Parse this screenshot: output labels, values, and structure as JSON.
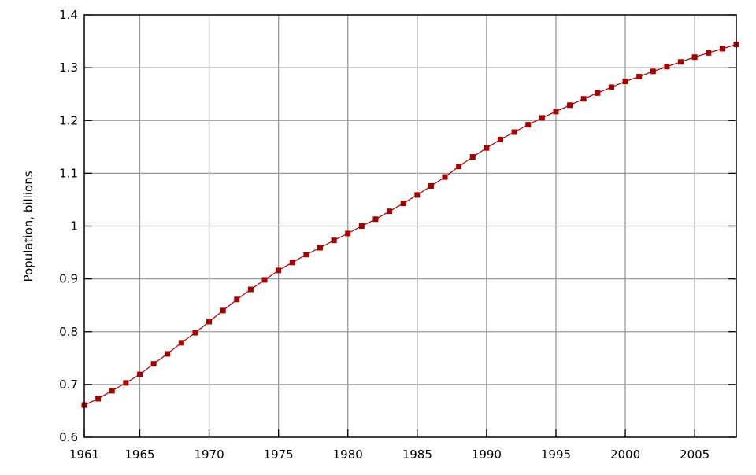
{
  "chart_data": {
    "type": "line",
    "title": "",
    "xlabel": "",
    "ylabel": "Population, billions",
    "xlim": [
      1961,
      2008
    ],
    "ylim": [
      0.6,
      1.4
    ],
    "grid": true,
    "x_ticks": [
      1961,
      1965,
      1970,
      1975,
      1980,
      1985,
      1990,
      1995,
      2000,
      2005
    ],
    "y_ticks": [
      "0.6",
      "0.7",
      "0.8",
      "0.9",
      "1",
      "1.1",
      "1.2",
      "1.3",
      "1.4"
    ],
    "series_color": "#a50000",
    "marker": "square",
    "x": [
      1961,
      1962,
      1963,
      1964,
      1965,
      1966,
      1967,
      1968,
      1969,
      1970,
      1971,
      1972,
      1973,
      1974,
      1975,
      1976,
      1977,
      1978,
      1979,
      1980,
      1981,
      1982,
      1983,
      1984,
      1985,
      1986,
      1987,
      1988,
      1989,
      1990,
      1991,
      1992,
      1993,
      1994,
      1995,
      1996,
      1997,
      1998,
      1999,
      2000,
      2001,
      2002,
      2003,
      2004,
      2005,
      2006,
      2007,
      2008
    ],
    "y": [
      0.661,
      0.673,
      0.688,
      0.703,
      0.719,
      0.739,
      0.758,
      0.779,
      0.798,
      0.819,
      0.84,
      0.861,
      0.88,
      0.898,
      0.916,
      0.931,
      0.946,
      0.959,
      0.973,
      0.986,
      1.0,
      1.013,
      1.028,
      1.043,
      1.059,
      1.076,
      1.093,
      1.113,
      1.131,
      1.148,
      1.164,
      1.178,
      1.192,
      1.205,
      1.217,
      1.229,
      1.241,
      1.252,
      1.263,
      1.274,
      1.283,
      1.293,
      1.302,
      1.311,
      1.32,
      1.328,
      1.336,
      1.344
    ]
  }
}
